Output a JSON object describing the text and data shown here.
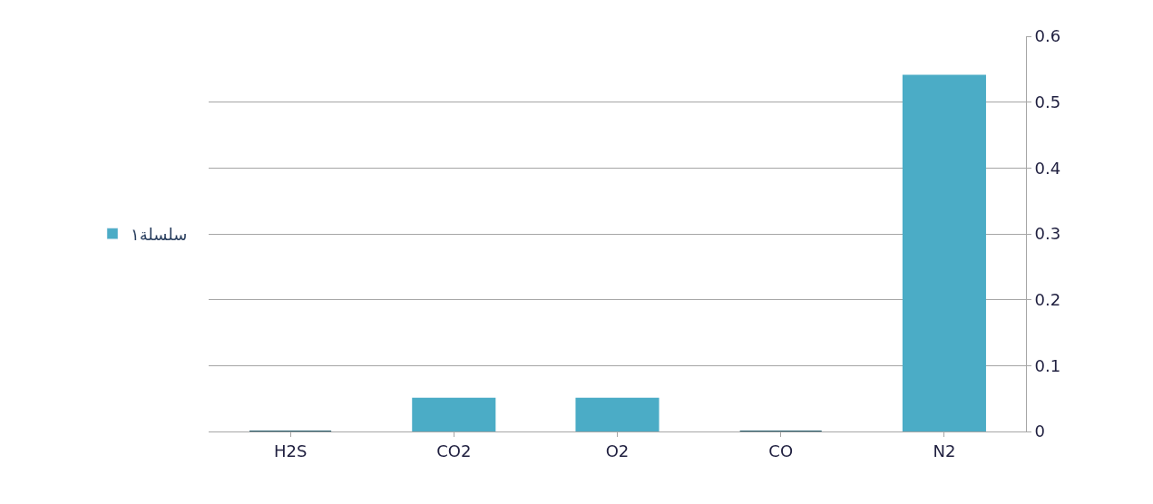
{
  "chart_data": {
    "type": "bar",
    "categories": [
      "H2S",
      "CO2",
      "O2",
      "CO",
      "N2"
    ],
    "series": [
      {
        "name": "سلسلة١",
        "color": "#4bacc6",
        "colors": [
          "#215968",
          "#4bacc6",
          "#4bacc6",
          "#215968",
          "#4bacc6"
        ],
        "values": [
          0,
          0.05,
          0.05,
          0,
          0.54
        ]
      }
    ],
    "ylim": [
      0,
      0.6
    ],
    "yticks": [
      0,
      0.1,
      0.2,
      0.3,
      0.4,
      0.5,
      0.6
    ],
    "grid": "y",
    "legend": "left"
  }
}
